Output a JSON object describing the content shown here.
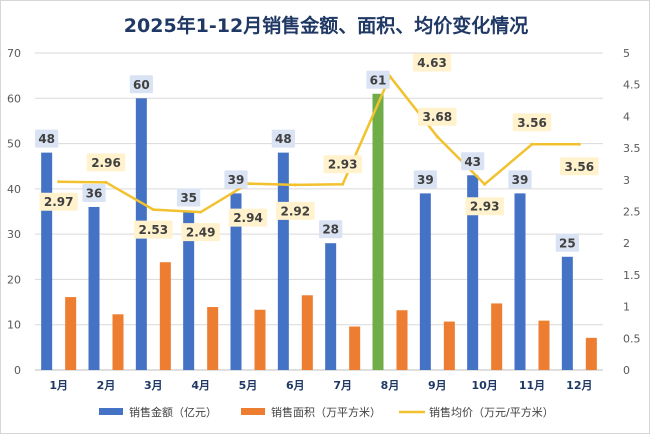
{
  "chart_data": {
    "type": "bar",
    "title": "2025年1-12月销售金额、面积、均价变化情况",
    "categories": [
      "1月",
      "2月",
      "3月",
      "4月",
      "5月",
      "6月",
      "7月",
      "8月",
      "9月",
      "10月",
      "11月",
      "12月"
    ],
    "series": [
      {
        "name": "销售金额（亿元）",
        "type": "bar",
        "axis": "left",
        "color": "#4472c4",
        "values": [
          48,
          36,
          60,
          35,
          39,
          48,
          28,
          61,
          39,
          43,
          39,
          25
        ],
        "highlight_index": 7,
        "highlight_color": "#70ad47"
      },
      {
        "name": "销售面积（万平方米）",
        "type": "bar",
        "axis": "left",
        "color": "#ed7d31",
        "values": [
          16.1,
          12.3,
          23.8,
          13.9,
          13.3,
          16.5,
          9.6,
          13.2,
          10.7,
          14.7,
          10.9,
          7.1
        ]
      },
      {
        "name": "销售均价（万元/平方米）",
        "type": "line",
        "axis": "right",
        "color": "#f2c12e",
        "values": [
          2.97,
          2.96,
          2.53,
          2.49,
          2.94,
          2.92,
          2.93,
          4.63,
          3.68,
          2.93,
          3.56,
          3.56
        ]
      }
    ],
    "bar_labels": [
      "48",
      "36",
      "60",
      "35",
      "39",
      "48",
      "28",
      "61",
      "39",
      "43",
      "39",
      "25"
    ],
    "line_labels": [
      "2.97",
      "2.96",
      "2.53",
      "2.49",
      "2.94",
      "2.92",
      "2.93",
      "4.63",
      "3.68",
      "2.93",
      "3.56",
      "3.56"
    ],
    "y_left": {
      "min": 0,
      "max": 70,
      "ticks": [
        "0",
        "10",
        "20",
        "30",
        "40",
        "50",
        "60",
        "70"
      ]
    },
    "y_right": {
      "min": 0,
      "max": 5,
      "ticks": [
        "0",
        "0.5",
        "1",
        "1.5",
        "2",
        "2.5",
        "3",
        "3.5",
        "4",
        "4.5",
        "5"
      ]
    },
    "grid": true,
    "legend": "bottom"
  }
}
